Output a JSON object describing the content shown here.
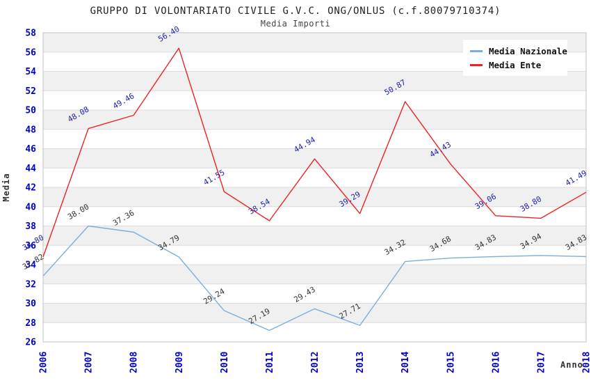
{
  "chart_data": {
    "type": "line",
    "title": "GRUPPO DI VOLONTARIATO CIVILE G.V.C. ONG/ONLUS (c.f.80079710374)",
    "subtitle": "Media Importi",
    "xlabel": "Anno",
    "ylabel": "Media",
    "categories": [
      "2006",
      "2007",
      "2008",
      "2009",
      "2010",
      "2011",
      "2012",
      "2013",
      "2014",
      "2015",
      "2016",
      "2017",
      "2018"
    ],
    "series": [
      {
        "name": "Media Nazionale",
        "color": "#7aaede",
        "label_color": "#333333",
        "values": [
          32.82,
          38.0,
          37.36,
          34.79,
          29.24,
          27.19,
          29.43,
          27.71,
          34.32,
          34.68,
          34.83,
          34.94,
          34.83
        ]
      },
      {
        "name": "Media Ente",
        "color": "#ee2222",
        "label_color": "#2222aa",
        "values": [
          34.8,
          48.08,
          49.46,
          56.4,
          41.55,
          38.54,
          44.94,
          39.29,
          50.87,
          44.43,
          39.06,
          38.8,
          41.49
        ]
      }
    ],
    "ylim": [
      26,
      58
    ],
    "ytick_step": 2,
    "grid": "horizontal-bands",
    "legend_position": "top-right",
    "band_color": "#f0f0f0",
    "grid_line_color": "#dcdcdc",
    "plot_border_color": "#c0c0c0",
    "axis_tick_color": "#0000cc"
  }
}
